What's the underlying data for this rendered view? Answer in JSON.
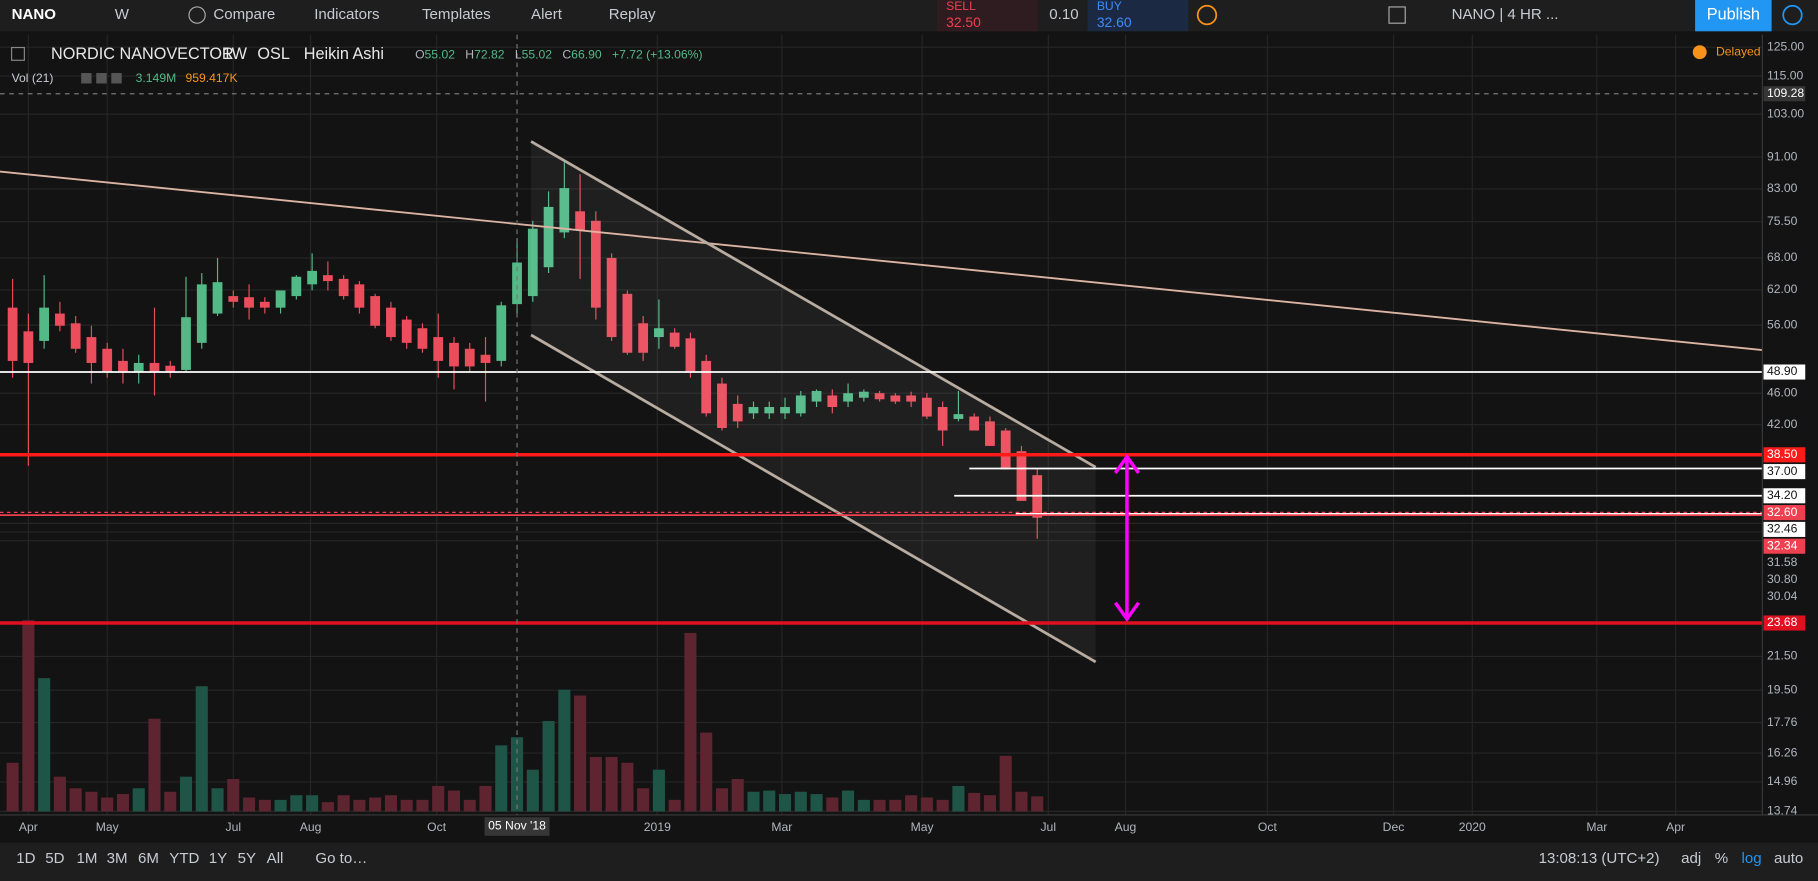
{
  "toolbar": {
    "symbol": "NANO",
    "interval": "W",
    "compare": "Compare",
    "indicators": "Indicators",
    "templates": "Templates",
    "alert": "Alert",
    "replay": "Replay",
    "sell_label": "SELL",
    "sell_price": "32.50",
    "spread": "0.10",
    "buy_label": "BUY",
    "buy_price": "32.60",
    "layout": "NANO | 4 HR ...",
    "publish": "Publish"
  },
  "legend": {
    "name": "NORDIC NANOVECTOR",
    "interval": "1W",
    "exchange": "OSL",
    "style": "Heikin Ashi",
    "ohlc": [
      {
        "label": "O",
        "value": "55.02"
      },
      {
        "label": "H",
        "value": "72.82"
      },
      {
        "label": "L",
        "value": "55.02"
      },
      {
        "label": "C",
        "value": "66.90"
      }
    ],
    "change": "+7.72 (+13.06%)",
    "volume_label": "Vol (21)",
    "volume": "3.149M",
    "volume_ma": "959.417K",
    "delayed": "Delayed"
  },
  "chart_data": {
    "type": "candlestick",
    "log_scale": true,
    "grid": true,
    "up_color": "#53b987",
    "down_color": "#eb4d5c",
    "vol_up_color": "#1f5546",
    "vol_down_color": "#5e2530",
    "open": [
      58.9,
      55,
      53.5,
      57.9,
      56.3,
      54.1,
      52.3,
      50.5,
      48.9,
      50.2,
      49.8,
      49.2,
      53.2,
      57.9,
      60.9,
      60.7,
      59.9,
      58.9,
      60.9,
      63,
      64.7,
      64,
      63,
      60.9,
      58.9,
      56.9,
      55.5,
      54.1,
      53.2,
      52.3,
      51.4,
      50.5,
      59.5,
      60.9,
      66.2,
      73.2,
      77.8,
      75.7,
      68,
      61.3,
      56.3,
      54.1,
      54.8,
      53.9,
      50.5,
      47.3,
      44.6,
      43.4,
      43.4,
      43.4,
      43.4,
      44.9,
      45.7,
      44.9,
      45.4,
      46,
      45.7,
      45.7,
      45.4,
      44.2,
      42.7,
      43,
      42.4,
      41.3,
      38.9,
      36.3
    ],
    "high": [
      64,
      57.9,
      64.7,
      59.9,
      57.5,
      55.9,
      53.2,
      52.3,
      51.4,
      58.9,
      50.5,
      64.4,
      65.1,
      68,
      61.9,
      63,
      60.7,
      61.9,
      64.7,
      68.9,
      67.3,
      64.7,
      63.6,
      61.3,
      59.9,
      57.5,
      56.3,
      57.9,
      54.1,
      53.2,
      54.1,
      59.9,
      72,
      75.7,
      82.4,
      89.6,
      86.6,
      77.8,
      68.9,
      61.9,
      57.5,
      60.3,
      55.5,
      54.8,
      51.4,
      48.1,
      45.7,
      44.9,
      44.9,
      45.4,
      46.3,
      46.5,
      46.5,
      47.3,
      46.5,
      46.3,
      46,
      46.2,
      46,
      44.9,
      46.3,
      43.4,
      43,
      41.6,
      39.5,
      36.9
    ],
    "low": [
      48.1,
      37.3,
      52.3,
      55,
      51.7,
      47.3,
      48.1,
      47.3,
      47.3,
      45.7,
      48.1,
      48.9,
      52.3,
      57.5,
      58.9,
      56.9,
      57.9,
      57.9,
      60.3,
      61.9,
      61.9,
      60.3,
      57.9,
      55.5,
      53.5,
      52.3,
      51.7,
      48.1,
      46.5,
      48.9,
      44.9,
      49.7,
      57.9,
      59.9,
      65.1,
      72,
      64,
      56.9,
      53.5,
      51.4,
      50.5,
      52.3,
      52.3,
      48.1,
      43,
      41.3,
      41.6,
      42.7,
      42.7,
      42.7,
      43,
      44.2,
      43.4,
      44.2,
      44.9,
      44.9,
      44.6,
      44.2,
      42.7,
      39.5,
      42.4,
      41.3,
      39.5,
      36.9,
      33.7,
      30.2
    ],
    "close": [
      50.5,
      50.2,
      58.9,
      55.9,
      52.3,
      50.2,
      48.9,
      48.9,
      50.2,
      48.9,
      48.9,
      57.3,
      63,
      63.4,
      59.9,
      58.9,
      58.9,
      61.9,
      64.4,
      65.5,
      63.6,
      60.9,
      58.9,
      55.9,
      54.1,
      53.2,
      52.3,
      50.5,
      49.7,
      49.7,
      50.2,
      59.3,
      67.1,
      74,
      78.8,
      83.2,
      73.7,
      58.9,
      54.1,
      51.7,
      51.7,
      55.5,
      52.6,
      48.9,
      43.4,
      41.6,
      42.4,
      44.2,
      44.2,
      44.2,
      45.7,
      46.3,
      44.2,
      46,
      46.2,
      45.2,
      44.9,
      44.9,
      43,
      41.3,
      43.3,
      41.3,
      39.5,
      36.9,
      33.7,
      32.1
    ],
    "volume": [
      10.5,
      41.25,
      28.75,
      7.5,
      5,
      4.25,
      3,
      3.75,
      5,
      20,
      4.25,
      7.5,
      27,
      5,
      7,
      3,
      2.5,
      2.5,
      3.5,
      3.5,
      2,
      3.5,
      2.5,
      3,
      3.5,
      2.5,
      2.5,
      5.5,
      4.5,
      2.5,
      5.5,
      14.25,
      16,
      9,
      19.5,
      26.25,
      25,
      11.75,
      11.75,
      10.5,
      5,
      9,
      2.5,
      38.5,
      17,
      5,
      7,
      4.25,
      4.5,
      3.75,
      4.25,
      3.75,
      3,
      4.5,
      2.5,
      2.5,
      2.5,
      3.5,
      3,
      2.5,
      5.5,
      4,
      3.5,
      12,
      4.25,
      3.25
    ],
    "vol_ylim": [
      0,
      42
    ],
    "xlim": [
      -0.8,
      111
    ],
    "ylim": [
      13.6,
      127
    ],
    "xticks": [
      {
        "value": 1,
        "label": "Apr"
      },
      {
        "value": 6,
        "label": "May"
      },
      {
        "value": 14,
        "label": "Jul"
      },
      {
        "value": 18.9,
        "label": "Aug"
      },
      {
        "value": 26.9,
        "label": "Oct"
      },
      {
        "value": 40.9,
        "label": "2019"
      },
      {
        "value": 48.8,
        "label": "Mar"
      },
      {
        "value": 57.7,
        "label": "May"
      },
      {
        "value": 65.7,
        "label": "Jul"
      },
      {
        "value": 70.6,
        "label": "Aug"
      },
      {
        "value": 79.6,
        "label": "Oct"
      },
      {
        "value": 87.6,
        "label": "Dec"
      },
      {
        "value": 92.6,
        "label": "2020"
      },
      {
        "value": 100.5,
        "label": "Mar"
      },
      {
        "value": 105.5,
        "label": "Apr"
      }
    ],
    "yticks": [
      {
        "value": 125,
        "label": "125.00"
      },
      {
        "value": 115,
        "label": "115.00"
      },
      {
        "value": 103,
        "label": "103.00"
      },
      {
        "value": 91,
        "label": "91.00"
      },
      {
        "value": 83,
        "label": "83.00"
      },
      {
        "value": 75.5,
        "label": "75.50"
      },
      {
        "value": 68,
        "label": "68.00"
      },
      {
        "value": 62,
        "label": "62.00"
      },
      {
        "value": 56,
        "label": "56.00"
      },
      {
        "value": 46,
        "label": "46.00"
      },
      {
        "value": 42,
        "label": "42.00"
      },
      {
        "value": 31.58,
        "label": "31.58"
      },
      {
        "value": 30.8,
        "label": "30.80"
      },
      {
        "value": 30.04,
        "label": "30.04"
      },
      {
        "value": 21.5,
        "label": "21.50"
      },
      {
        "value": 19.5,
        "label": "19.50"
      },
      {
        "value": 17.76,
        "label": "17.76"
      },
      {
        "value": 16.26,
        "label": "16.26"
      },
      {
        "value": 14.96,
        "label": "14.96"
      },
      {
        "value": 13.74,
        "label": "13.74"
      }
    ],
    "price_lines": [
      {
        "value": 48.9,
        "label": "48.90",
        "color": "#ffffff"
      },
      {
        "value": 38.5,
        "label": "38.50",
        "color": "#ff1a1a"
      },
      {
        "value": 37,
        "label": "37.00",
        "color": "#ffffff"
      },
      {
        "value": 34.2,
        "label": "34.20",
        "color": "#ffffff"
      },
      {
        "value": 32.6,
        "label": "32.60",
        "color": "#ef4050",
        "dashed": true
      },
      {
        "value": 32.46,
        "label": "32.46",
        "color": "#ffffff"
      },
      {
        "value": 32.34,
        "label": "32.34",
        "color": "#ef4050"
      },
      {
        "value": 23.68,
        "label": "23.68",
        "color": "#e01020"
      }
    ],
    "crosshair": {
      "x": 32,
      "x_label": "05 Nov '18",
      "y": 109.28,
      "y_label": "109.28"
    }
  },
  "footer": {
    "ranges": [
      "1D",
      "5D",
      "1M",
      "3M",
      "6M",
      "YTD",
      "1Y",
      "5Y",
      "All"
    ],
    "goto": "Go to…",
    "time": "13:08:13 (UTC+2)",
    "adj": "adj",
    "percent": "%",
    "log": "log",
    "auto": "auto"
  }
}
